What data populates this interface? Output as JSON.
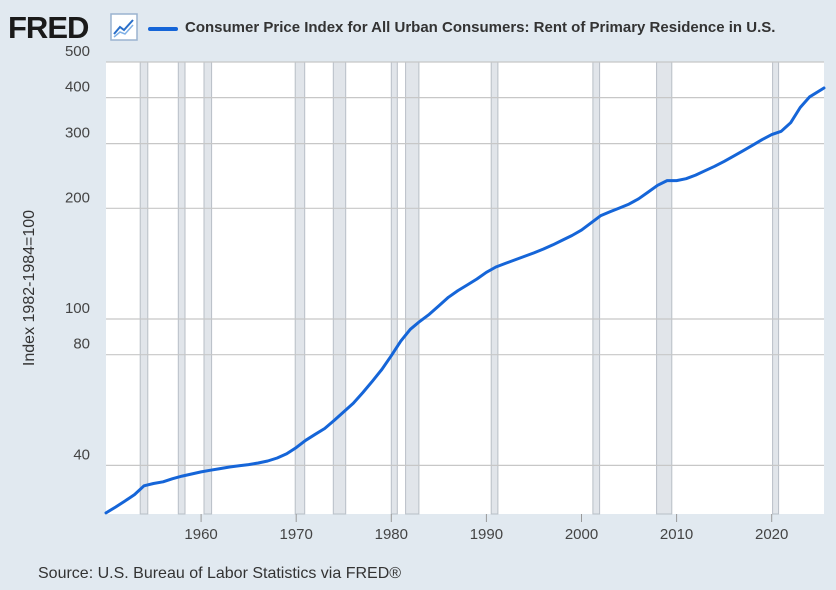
{
  "header": {
    "logo": "FRED",
    "logo_icon": "line-chart-icon",
    "title": "Consumer Price Index for All Urban Consumers: Rent of Primary Residence in U.S."
  },
  "source": "Source: U.S. Bureau of Labor Statistics via FRED®",
  "colors": {
    "line": "#1565d8",
    "background": "#e1e9f0",
    "plot_bg": "#ffffff",
    "recession": "#e1e5ea",
    "grid": "#c7c7c7"
  },
  "chart_data": {
    "type": "line",
    "title": "Consumer Price Index for All Urban Consumers: Rent of Primary Residence in U.S.",
    "ylabel": "Index 1982-1984=100",
    "xlabel": "",
    "yscale": "log",
    "xlim": [
      1950,
      2025.5
    ],
    "ylim": [
      29.5,
      500
    ],
    "xticks": [
      1960,
      1970,
      1980,
      1990,
      2000,
      2010,
      2020
    ],
    "yticks": [
      40,
      80,
      100,
      200,
      300,
      400,
      500
    ],
    "grid": true,
    "recessions": [
      [
        1953.6,
        1954.4
      ],
      [
        1957.6,
        1958.3
      ],
      [
        1960.3,
        1961.1
      ],
      [
        1969.9,
        1970.9
      ],
      [
        1973.9,
        1975.2
      ],
      [
        1980.0,
        1980.5
      ],
      [
        1981.5,
        1982.9
      ],
      [
        1990.5,
        1991.2
      ],
      [
        2001.2,
        2001.9
      ],
      [
        2007.9,
        2009.5
      ],
      [
        2020.1,
        2020.4
      ]
    ],
    "series": [
      {
        "name": "Rent of Primary Residence in U.S.",
        "x": [
          1950,
          1951,
          1952,
          1953,
          1954,
          1955,
          1956,
          1957,
          1958,
          1959,
          1960,
          1961,
          1962,
          1963,
          1964,
          1965,
          1966,
          1967,
          1968,
          1969,
          1970,
          1971,
          1972,
          1973,
          1974,
          1975,
          1976,
          1977,
          1978,
          1979,
          1980,
          1981,
          1982,
          1983,
          1984,
          1985,
          1986,
          1987,
          1988,
          1989,
          1990,
          1991,
          1992,
          1993,
          1994,
          1995,
          1996,
          1997,
          1998,
          1999,
          2000,
          2001,
          2002,
          2003,
          2004,
          2005,
          2006,
          2007,
          2008,
          2009,
          2010,
          2011,
          2012,
          2013,
          2014,
          2015,
          2016,
          2017,
          2018,
          2019,
          2020,
          2021,
          2022,
          2023,
          2024,
          2025.5
        ],
        "values": [
          29.7,
          30.8,
          32.0,
          33.3,
          35.2,
          35.7,
          36.1,
          36.8,
          37.4,
          37.9,
          38.4,
          38.8,
          39.2,
          39.6,
          39.9,
          40.2,
          40.6,
          41.1,
          41.9,
          43.0,
          44.7,
          46.8,
          48.6,
          50.4,
          53.0,
          55.9,
          59.0,
          63.1,
          67.7,
          72.9,
          79.5,
          87.1,
          93.8,
          98.5,
          103.0,
          108.6,
          114.6,
          119.5,
          123.8,
          128.5,
          134.0,
          138.5,
          141.7,
          144.8,
          148.0,
          151.3,
          155.0,
          159.2,
          163.9,
          168.7,
          174.5,
          182.6,
          190.9,
          195.7,
          200.4,
          205.4,
          212.3,
          221.4,
          231.0,
          237.9,
          238.0,
          240.8,
          246.3,
          253.1,
          260.2,
          268.4,
          277.3,
          286.9,
          297.0,
          307.6,
          317.4,
          324.0,
          342.0,
          376.0,
          402.0,
          425.0
        ]
      }
    ]
  }
}
